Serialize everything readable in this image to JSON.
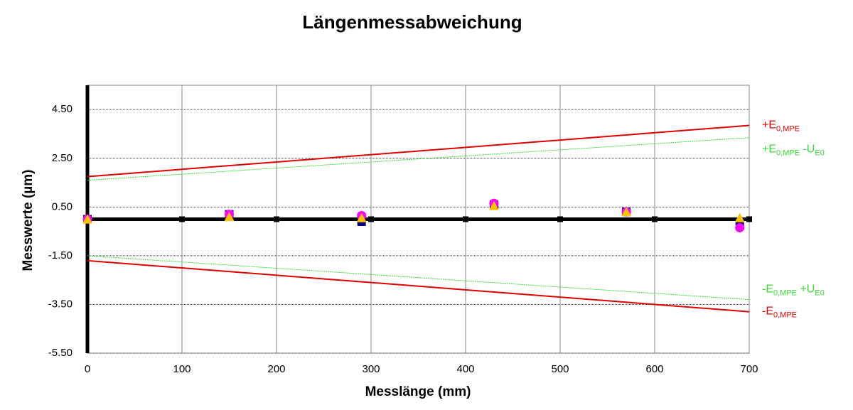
{
  "chart_data": {
    "type": "scatter",
    "title": "Längenmessabweichung",
    "x_label": "Messlänge (mm)",
    "y_label": "Messwerte (µm)",
    "xlim": [
      0,
      700
    ],
    "xticks": [
      0,
      100,
      200,
      300,
      400,
      500,
      600,
      700
    ],
    "ylim": [
      -5.5,
      5.5
    ],
    "yticks": [
      {
        "value": -5.5,
        "label": "-5.50"
      },
      {
        "value": -3.5,
        "label": "-3.50"
      },
      {
        "value": -1.5,
        "label": "-1.50"
      },
      {
        "value": 0.5,
        "label": "0.50"
      },
      {
        "value": 2.5,
        "label": "2.50"
      },
      {
        "value": 4.5,
        "label": "4.50"
      }
    ],
    "grid": true,
    "series": [
      {
        "name_parts": [
          "+E",
          "0,MPE"
        ],
        "color": "#e00000",
        "style": "line",
        "x": [
          0,
          700
        ],
        "values": [
          1.75,
          3.85
        ]
      },
      {
        "name_parts": [
          "+E",
          "0,MPE",
          " -U",
          "E0"
        ],
        "color": "#33dd33",
        "style": "thin-line",
        "x": [
          0,
          700
        ],
        "values": [
          1.6,
          3.35
        ]
      },
      {
        "name_parts": [
          "-E",
          "0,MPE",
          " +U",
          "E0"
        ],
        "color": "#33dd33",
        "style": "thin-line",
        "x": [
          0,
          700
        ],
        "values": [
          -1.5,
          -3.3
        ]
      },
      {
        "name_parts": [
          "-E",
          "0,MPE"
        ],
        "color": "#e00000",
        "style": "line",
        "x": [
          0,
          700
        ],
        "values": [
          -1.7,
          -3.8
        ]
      },
      {
        "color": "#000000",
        "style": "thick-line-square",
        "x": [
          0,
          100,
          200,
          300,
          400,
          500,
          600,
          700
        ],
        "values": [
          0,
          0,
          0,
          0,
          0,
          0,
          0,
          0
        ]
      },
      {
        "color": "#000080",
        "style": "square",
        "x": [
          0,
          150,
          290,
          430,
          570,
          690
        ],
        "values": [
          0,
          0.2,
          -0.1,
          0.6,
          0.3,
          -0.1
        ]
      },
      {
        "color": "#ff00ff",
        "style": "circle",
        "x": [
          0,
          150,
          290,
          430,
          570,
          690
        ],
        "values": [
          0,
          0.2,
          0.15,
          0.65,
          0.3,
          -0.35
        ]
      },
      {
        "color": "#ffc000",
        "style": "triangle",
        "x": [
          0,
          150,
          290,
          430,
          570,
          690
        ],
        "values": [
          0,
          0.1,
          0.05,
          0.55,
          0.3,
          0.05
        ]
      }
    ]
  }
}
